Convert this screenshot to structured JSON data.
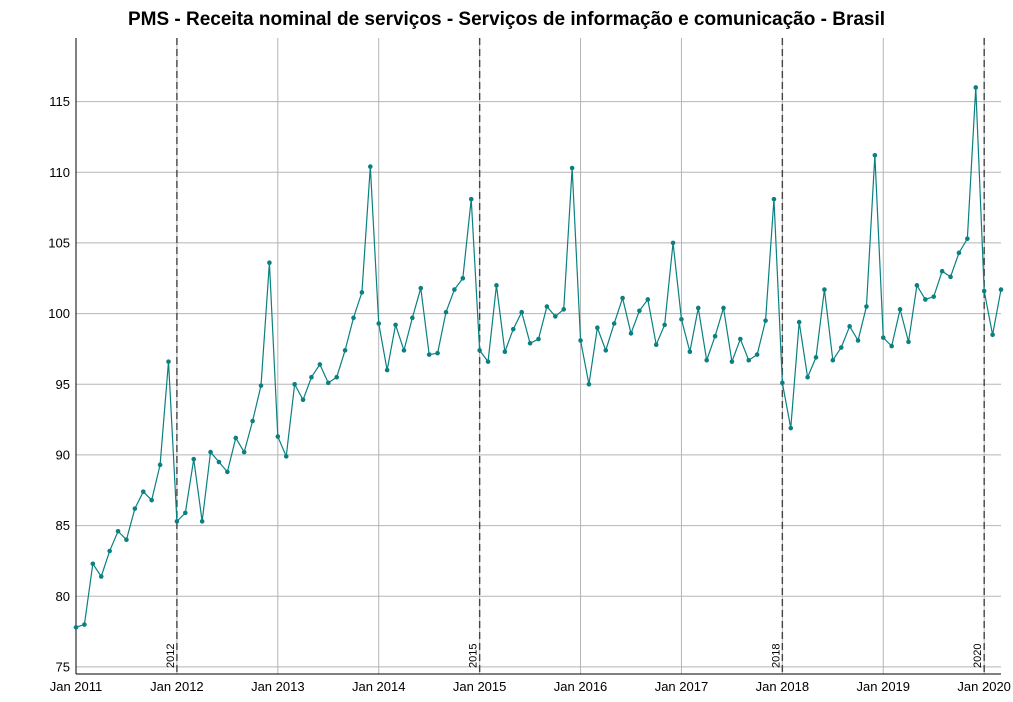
{
  "chart_data": {
    "type": "line",
    "title": "PMS - Receita nominal de serviços - Serviços de informação e comunicação - Brasil",
    "xlabel": "",
    "ylabel": "",
    "ylim": [
      74.5,
      119.5
    ],
    "xlim": [
      "2011-01",
      "2020-03"
    ],
    "yticks": [
      75,
      80,
      85,
      90,
      95,
      100,
      105,
      110,
      115
    ],
    "xticks": [
      {
        "date": "2011-01",
        "label": "Jan 2011"
      },
      {
        "date": "2012-01",
        "label": "Jan 2012"
      },
      {
        "date": "2013-01",
        "label": "Jan 2013"
      },
      {
        "date": "2014-01",
        "label": "Jan 2014"
      },
      {
        "date": "2015-01",
        "label": "Jan 2015"
      },
      {
        "date": "2016-01",
        "label": "Jan 2016"
      },
      {
        "date": "2017-01",
        "label": "Jan 2017"
      },
      {
        "date": "2018-01",
        "label": "Jan 2018"
      },
      {
        "date": "2019-01",
        "label": "Jan 2019"
      },
      {
        "date": "2020-01",
        "label": "Jan 2020"
      }
    ],
    "grid": true,
    "color": "#0a8080",
    "vertical_lines": [
      {
        "date": "2012-01",
        "label": "2012"
      },
      {
        "date": "2015-01",
        "label": "2015"
      },
      {
        "date": "2018-01",
        "label": "2018"
      },
      {
        "date": "2020-01",
        "label": "2020"
      }
    ],
    "series": [
      {
        "x": [
          "2011-01",
          "2011-02",
          "2011-03",
          "2011-04",
          "2011-05",
          "2011-06",
          "2011-07",
          "2011-08",
          "2011-09",
          "2011-10",
          "2011-11",
          "2011-12",
          "2012-01",
          "2012-02",
          "2012-03",
          "2012-04",
          "2012-05",
          "2012-06",
          "2012-07",
          "2012-08",
          "2012-09",
          "2012-10",
          "2012-11",
          "2012-12",
          "2013-01",
          "2013-02",
          "2013-03",
          "2013-04",
          "2013-05",
          "2013-06",
          "2013-07",
          "2013-08",
          "2013-09",
          "2013-10",
          "2013-11",
          "2013-12",
          "2014-01",
          "2014-02",
          "2014-03",
          "2014-04",
          "2014-05",
          "2014-06",
          "2014-07",
          "2014-08",
          "2014-09",
          "2014-10",
          "2014-11",
          "2014-12",
          "2015-01",
          "2015-02",
          "2015-03",
          "2015-04",
          "2015-05",
          "2015-06",
          "2015-07",
          "2015-08",
          "2015-09",
          "2015-10",
          "2015-11",
          "2015-12",
          "2016-01",
          "2016-02",
          "2016-03",
          "2016-04",
          "2016-05",
          "2016-06",
          "2016-07",
          "2016-08",
          "2016-09",
          "2016-10",
          "2016-11",
          "2016-12",
          "2017-01",
          "2017-02",
          "2017-03",
          "2017-04",
          "2017-05",
          "2017-06",
          "2017-07",
          "2017-08",
          "2017-09",
          "2017-10",
          "2017-11",
          "2017-12",
          "2018-01",
          "2018-02",
          "2018-03",
          "2018-04",
          "2018-05",
          "2018-06",
          "2018-07",
          "2018-08",
          "2018-09",
          "2018-10",
          "2018-11",
          "2018-12",
          "2019-01",
          "2019-02",
          "2019-03",
          "2019-04",
          "2019-05",
          "2019-06",
          "2019-07",
          "2019-08",
          "2019-09",
          "2019-10",
          "2019-11",
          "2019-12",
          "2020-01",
          "2020-02",
          "2020-03"
        ],
        "values": [
          77.8,
          78.0,
          82.3,
          81.4,
          83.2,
          84.6,
          84.0,
          86.2,
          87.4,
          86.8,
          89.3,
          96.6,
          85.3,
          85.9,
          89.7,
          85.3,
          90.2,
          89.5,
          88.8,
          91.2,
          90.2,
          92.4,
          94.9,
          103.6,
          91.3,
          89.9,
          95.0,
          93.9,
          95.5,
          96.4,
          95.1,
          95.5,
          97.4,
          99.7,
          101.5,
          110.4,
          99.3,
          96.0,
          99.2,
          97.4,
          99.7,
          101.8,
          97.1,
          97.2,
          100.1,
          101.7,
          102.5,
          108.1,
          97.4,
          96.6,
          102.0,
          97.3,
          98.9,
          100.1,
          97.9,
          98.2,
          100.5,
          99.8,
          100.3,
          110.3,
          98.1,
          95.0,
          99.0,
          97.4,
          99.3,
          101.1,
          98.6,
          100.2,
          101.0,
          97.8,
          99.2,
          105.0,
          99.6,
          97.3,
          100.4,
          96.7,
          98.4,
          100.4,
          96.6,
          98.2,
          96.7,
          97.1,
          99.5,
          108.1,
          95.1,
          91.9,
          99.4,
          95.5,
          96.9,
          101.7,
          96.7,
          97.6,
          99.1,
          98.1,
          100.5,
          111.2,
          98.3,
          97.7,
          100.3,
          98.0,
          102.0,
          101.0,
          101.2,
          103.0,
          102.6,
          104.3,
          105.3,
          116.0,
          101.6,
          98.5,
          101.7
        ]
      }
    ]
  }
}
